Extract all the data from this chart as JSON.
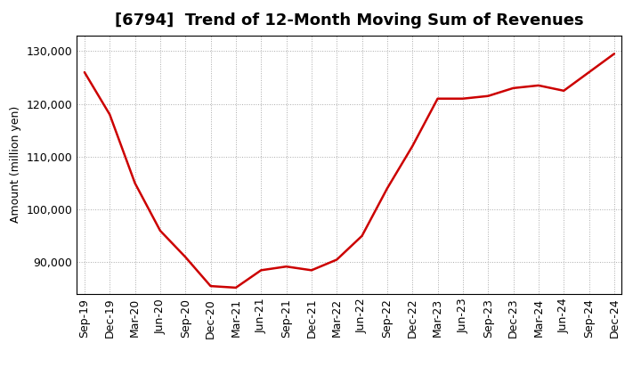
{
  "title": "[6794]  Trend of 12-Month Moving Sum of Revenues",
  "ylabel": "Amount (million yen)",
  "background_color": "#ffffff",
  "line_color": "#cc0000",
  "grid_color": "#aaaaaa",
  "grid_style": ":",
  "labels": [
    "Sep-19",
    "Dec-19",
    "Mar-20",
    "Jun-20",
    "Sep-20",
    "Dec-20",
    "Mar-21",
    "Jun-21",
    "Sep-21",
    "Dec-21",
    "Mar-22",
    "Jun-22",
    "Sep-22",
    "Dec-22",
    "Mar-23",
    "Jun-23",
    "Sep-23",
    "Dec-23",
    "Mar-24",
    "Jun-24",
    "Sep-24",
    "Dec-24"
  ],
  "values": [
    126000,
    118000,
    105000,
    96000,
    91000,
    85500,
    85200,
    88500,
    89200,
    88500,
    90500,
    95000,
    104000,
    112000,
    121000,
    121000,
    121500,
    123000,
    123500,
    122500,
    126000,
    129500
  ],
  "ylim_min": 84000,
  "ylim_max": 133000,
  "yticks": [
    90000,
    100000,
    110000,
    120000,
    130000
  ],
  "title_fontsize": 13,
  "ylabel_fontsize": 9,
  "tick_fontsize": 9,
  "linewidth": 1.8
}
